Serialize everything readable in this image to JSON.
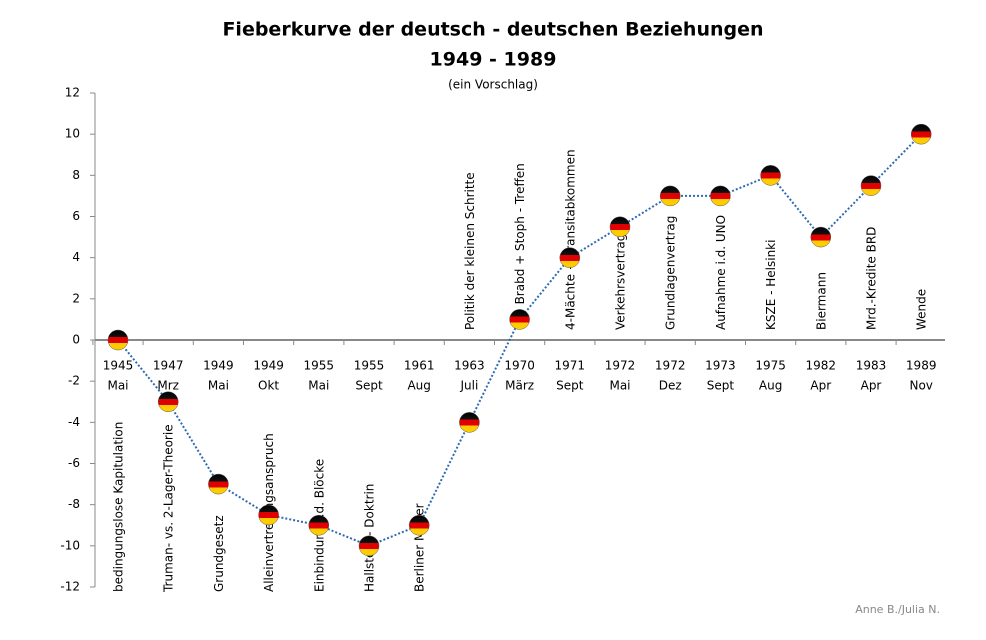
{
  "chart_data": {
    "type": "line",
    "title": "Fieberkurve der deutsch - deutschen Beziehungen",
    "subtitle": "1949 - 1989",
    "note": "(ein Vorschlag)",
    "credit": "Anne B./Julia N.",
    "categories": [
      [
        "1945",
        "Mai"
      ],
      [
        "1947",
        "Mrz"
      ],
      [
        "1949",
        "Mai"
      ],
      [
        "1949",
        "Okt"
      ],
      [
        "1955",
        "Mai"
      ],
      [
        "1955",
        "Sept"
      ],
      [
        "1961",
        "Aug"
      ],
      [
        "1963",
        "Juli"
      ],
      [
        "1970",
        "März"
      ],
      [
        "1971",
        "Sept"
      ],
      [
        "1972",
        "Mai"
      ],
      [
        "1972",
        "Dez"
      ],
      [
        "1973",
        "Sept"
      ],
      [
        "1975",
        "Aug"
      ],
      [
        "1982",
        "Apr"
      ],
      [
        "1983",
        "Apr"
      ],
      [
        "1989",
        "Nov"
      ]
    ],
    "values": [
      0,
      -3,
      -7,
      -8.5,
      -9,
      -10,
      -9,
      -4,
      1,
      4,
      5.5,
      7,
      7,
      8,
      5,
      7.5,
      10
    ],
    "annotations": [
      "bedingungslose Kapitulation",
      "Truman- vs. 2-Lager-Theorie",
      "Grundgesetz",
      "Alleinvertretungsanspruch",
      "Einbindung i.d. Blöcke",
      "Hallstein - Doktrin",
      "Berliner Mauer",
      "Politik der kleinen Schritte",
      "Brabd + Stoph - Treffen",
      "4-Mächte + Transitabkommen",
      "Verkehrsvertrag",
      "Grundlagenvertrag",
      "Aufnahme i.d. UNO",
      "KSZE - Helsinki",
      "Biermann",
      "Mrd.-Kredite BRD",
      "Wende"
    ],
    "color": "#2e6bb0",
    "ylim": [
      -12,
      12
    ],
    "yticks": [
      -12,
      -10,
      -8,
      -6,
      -4,
      -2,
      0,
      2,
      4,
      6,
      8,
      10,
      12
    ]
  }
}
